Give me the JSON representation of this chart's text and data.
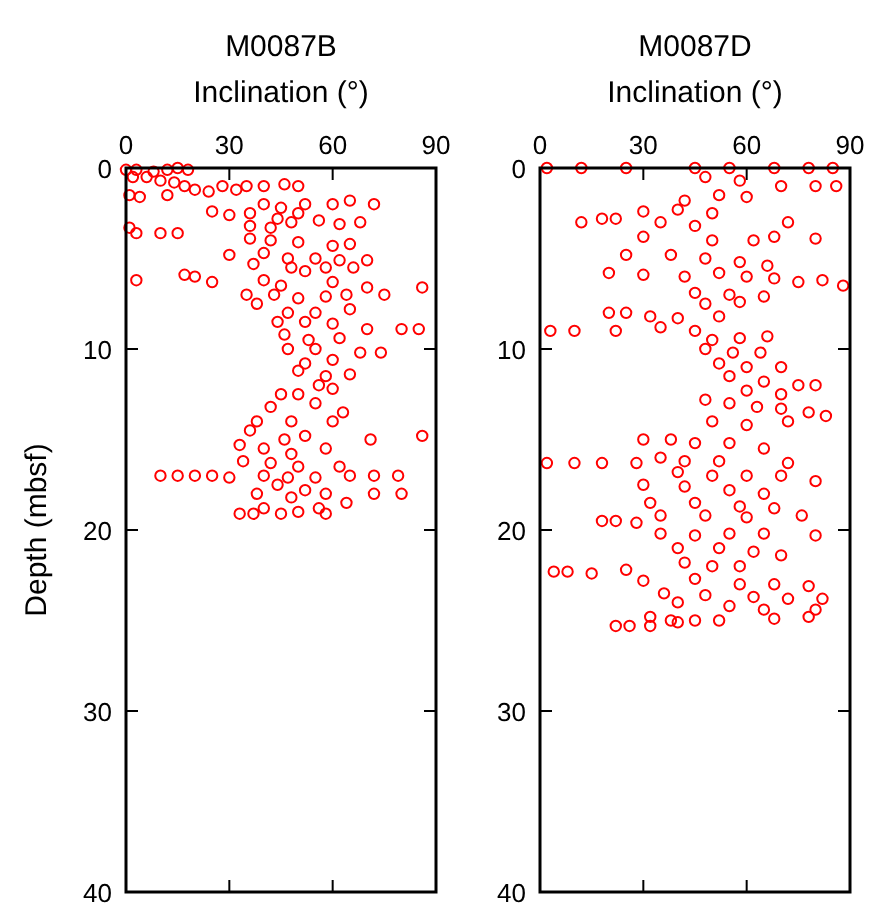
{
  "chart_data": [
    {
      "type": "scatter",
      "title": "M0087B",
      "xlabel": "Inclination (°)",
      "ylabel": "Depth (mbsf)",
      "xlim": [
        0,
        90
      ],
      "xticks": [
        0,
        30,
        60,
        90
      ],
      "ylim": [
        40,
        0
      ],
      "yticks": [
        0,
        10,
        20,
        30,
        40
      ],
      "marker": "circle",
      "series": [
        {
          "color": "#ff0000",
          "x": [
            0,
            3,
            8,
            12,
            15,
            18,
            2,
            6,
            10,
            14,
            17,
            20,
            24,
            28,
            32,
            35,
            40,
            46,
            50,
            1,
            4,
            12,
            40,
            45,
            52,
            60,
            65,
            72,
            50,
            25,
            30,
            36,
            44,
            48,
            56,
            62,
            68,
            36,
            42,
            1,
            3,
            10,
            15,
            36,
            42,
            50,
            60,
            65,
            30,
            40,
            47,
            55,
            62,
            70,
            37,
            48,
            52,
            58,
            66,
            17,
            20,
            25,
            3,
            40,
            45,
            60,
            70,
            86,
            35,
            43,
            50,
            58,
            64,
            75,
            38,
            47,
            55,
            65,
            44,
            52,
            60,
            70,
            80,
            85,
            46,
            53,
            62,
            47,
            55,
            68,
            74,
            52,
            60,
            50,
            58,
            65,
            56,
            60,
            50,
            45,
            42,
            55,
            63,
            38,
            48,
            60,
            36,
            46,
            52,
            71,
            86,
            33,
            40,
            48,
            58,
            34,
            42,
            50,
            62,
            10,
            15,
            20,
            25,
            30,
            40,
            47,
            55,
            65,
            72,
            79,
            44,
            52,
            38,
            48,
            58,
            72,
            80,
            64,
            40,
            50,
            56,
            33,
            37,
            45,
            58
          ],
          "values": [
            0.1,
            0.1,
            0.2,
            0.1,
            0,
            0.1,
            0.5,
            0.5,
            0.7,
            0.8,
            1,
            1.2,
            1.3,
            1,
            1.2,
            1,
            1,
            0.9,
            1,
            1.5,
            1.6,
            1.5,
            2,
            2.2,
            2,
            2,
            1.8,
            2,
            2.5,
            2.4,
            2.6,
            2.5,
            2.8,
            3,
            2.9,
            3.1,
            3,
            3.2,
            3.3,
            3.3,
            3.6,
            3.6,
            3.6,
            3.9,
            4,
            4.1,
            4.3,
            4.2,
            4.8,
            4.7,
            5,
            5,
            5.1,
            5.1,
            5.3,
            5.5,
            5.7,
            5.5,
            5.5,
            5.9,
            6,
            6.3,
            6.2,
            6.2,
            6.5,
            6.3,
            6.6,
            6.6,
            7,
            7,
            7.2,
            7.1,
            7,
            7,
            7.5,
            8,
            8,
            7.8,
            8.5,
            8.5,
            8.6,
            8.9,
            8.9,
            8.9,
            9.2,
            9.5,
            9.4,
            10,
            10,
            10.2,
            10.2,
            10.8,
            10.6,
            11.2,
            11.5,
            11.4,
            12,
            12.2,
            12.5,
            12.5,
            13.2,
            13,
            13.5,
            14,
            14,
            14,
            14.5,
            15,
            14.8,
            15,
            14.8,
            15.3,
            15.5,
            15.8,
            15.5,
            16.2,
            16.3,
            16.5,
            16.5,
            17,
            17,
            17,
            17,
            17.1,
            17,
            17.1,
            17.1,
            17,
            17,
            17,
            17.5,
            17.8,
            18,
            18.2,
            18,
            18,
            18,
            18.5,
            18.8,
            19,
            18.8,
            19.1,
            19.1,
            19.1,
            19.1
          ]
        }
      ]
    },
    {
      "type": "scatter",
      "title": "M0087D",
      "xlabel": "Inclination (°)",
      "xlim": [
        0,
        90
      ],
      "xticks": [
        0,
        30,
        60,
        90
      ],
      "ylim": [
        40,
        0
      ],
      "yticks": [
        0,
        10,
        20,
        30,
        40
      ],
      "marker": "circle",
      "series": [
        {
          "color": "#ff0000",
          "x": [
            2,
            12,
            25,
            45,
            55,
            68,
            78,
            85,
            48,
            58,
            70,
            80,
            86,
            52,
            42,
            60,
            30,
            40,
            50,
            18,
            12,
            22,
            35,
            45,
            72,
            80,
            30,
            50,
            62,
            68,
            25,
            38,
            48,
            58,
            66,
            20,
            30,
            42,
            52,
            60,
            68,
            75,
            82,
            88,
            45,
            55,
            65,
            48,
            58,
            20,
            25,
            32,
            40,
            52,
            35,
            45,
            3,
            10,
            22,
            50,
            58,
            66,
            48,
            56,
            64,
            52,
            60,
            70,
            55,
            65,
            75,
            80,
            60,
            70,
            48,
            55,
            63,
            70,
            78,
            83,
            50,
            60,
            72,
            30,
            38,
            45,
            55,
            65,
            35,
            42,
            52,
            2,
            10,
            18,
            28,
            72,
            40,
            50,
            60,
            70,
            80,
            30,
            42,
            55,
            65,
            32,
            45,
            58,
            68,
            35,
            48,
            60,
            76,
            18,
            22,
            28,
            35,
            45,
            55,
            65,
            80,
            40,
            52,
            62,
            70,
            42,
            50,
            58,
            4,
            8,
            15,
            25,
            30,
            45,
            58,
            68,
            78,
            36,
            48,
            62,
            72,
            82,
            40,
            55,
            65,
            80,
            32,
            38,
            45,
            52,
            68,
            78,
            22,
            26,
            32,
            40
          ],
          "values": [
            0,
            0,
            0,
            0,
            0,
            0,
            0,
            0,
            0.5,
            0.7,
            1,
            1,
            1,
            1.5,
            1.8,
            1.6,
            2.4,
            2.3,
            2.5,
            2.8,
            3,
            2.8,
            3,
            3.2,
            3,
            3.9,
            3.8,
            4,
            4,
            3.8,
            4.8,
            4.8,
            5,
            5.2,
            5.4,
            5.8,
            5.9,
            6,
            5.8,
            6,
            6.1,
            6.3,
            6.2,
            6.5,
            6.9,
            7,
            7.1,
            7.5,
            7.4,
            8,
            8,
            8.2,
            8.3,
            8.2,
            8.8,
            9,
            9,
            9,
            9,
            9.5,
            9.4,
            9.3,
            10,
            10.2,
            10.2,
            10.8,
            11,
            11,
            11.5,
            11.8,
            12,
            12,
            12.3,
            12.5,
            12.8,
            13,
            13.2,
            13.3,
            13.5,
            13.7,
            14,
            14.2,
            14,
            15,
            15,
            15.2,
            15.2,
            15.5,
            16,
            16.2,
            16.2,
            16.3,
            16.3,
            16.3,
            16.3,
            16.3,
            16.8,
            17,
            17,
            17,
            17.3,
            17.5,
            17.6,
            17.8,
            18,
            18.5,
            18.5,
            18.7,
            18.8,
            19.2,
            19.2,
            19.3,
            19.2,
            19.5,
            19.5,
            19.6,
            20.2,
            20.3,
            20.2,
            20.2,
            20.3,
            21,
            21,
            21.2,
            21.4,
            21.8,
            22,
            22,
            22.3,
            22.3,
            22.4,
            22.2,
            22.8,
            22.7,
            23,
            23,
            23.1,
            23.5,
            23.6,
            23.7,
            23.8,
            23.8,
            24,
            24.2,
            24.4,
            24.4,
            24.8,
            25,
            25,
            25,
            24.9,
            24.8,
            25.3,
            25.3,
            25.3,
            25.1
          ]
        }
      ]
    }
  ]
}
